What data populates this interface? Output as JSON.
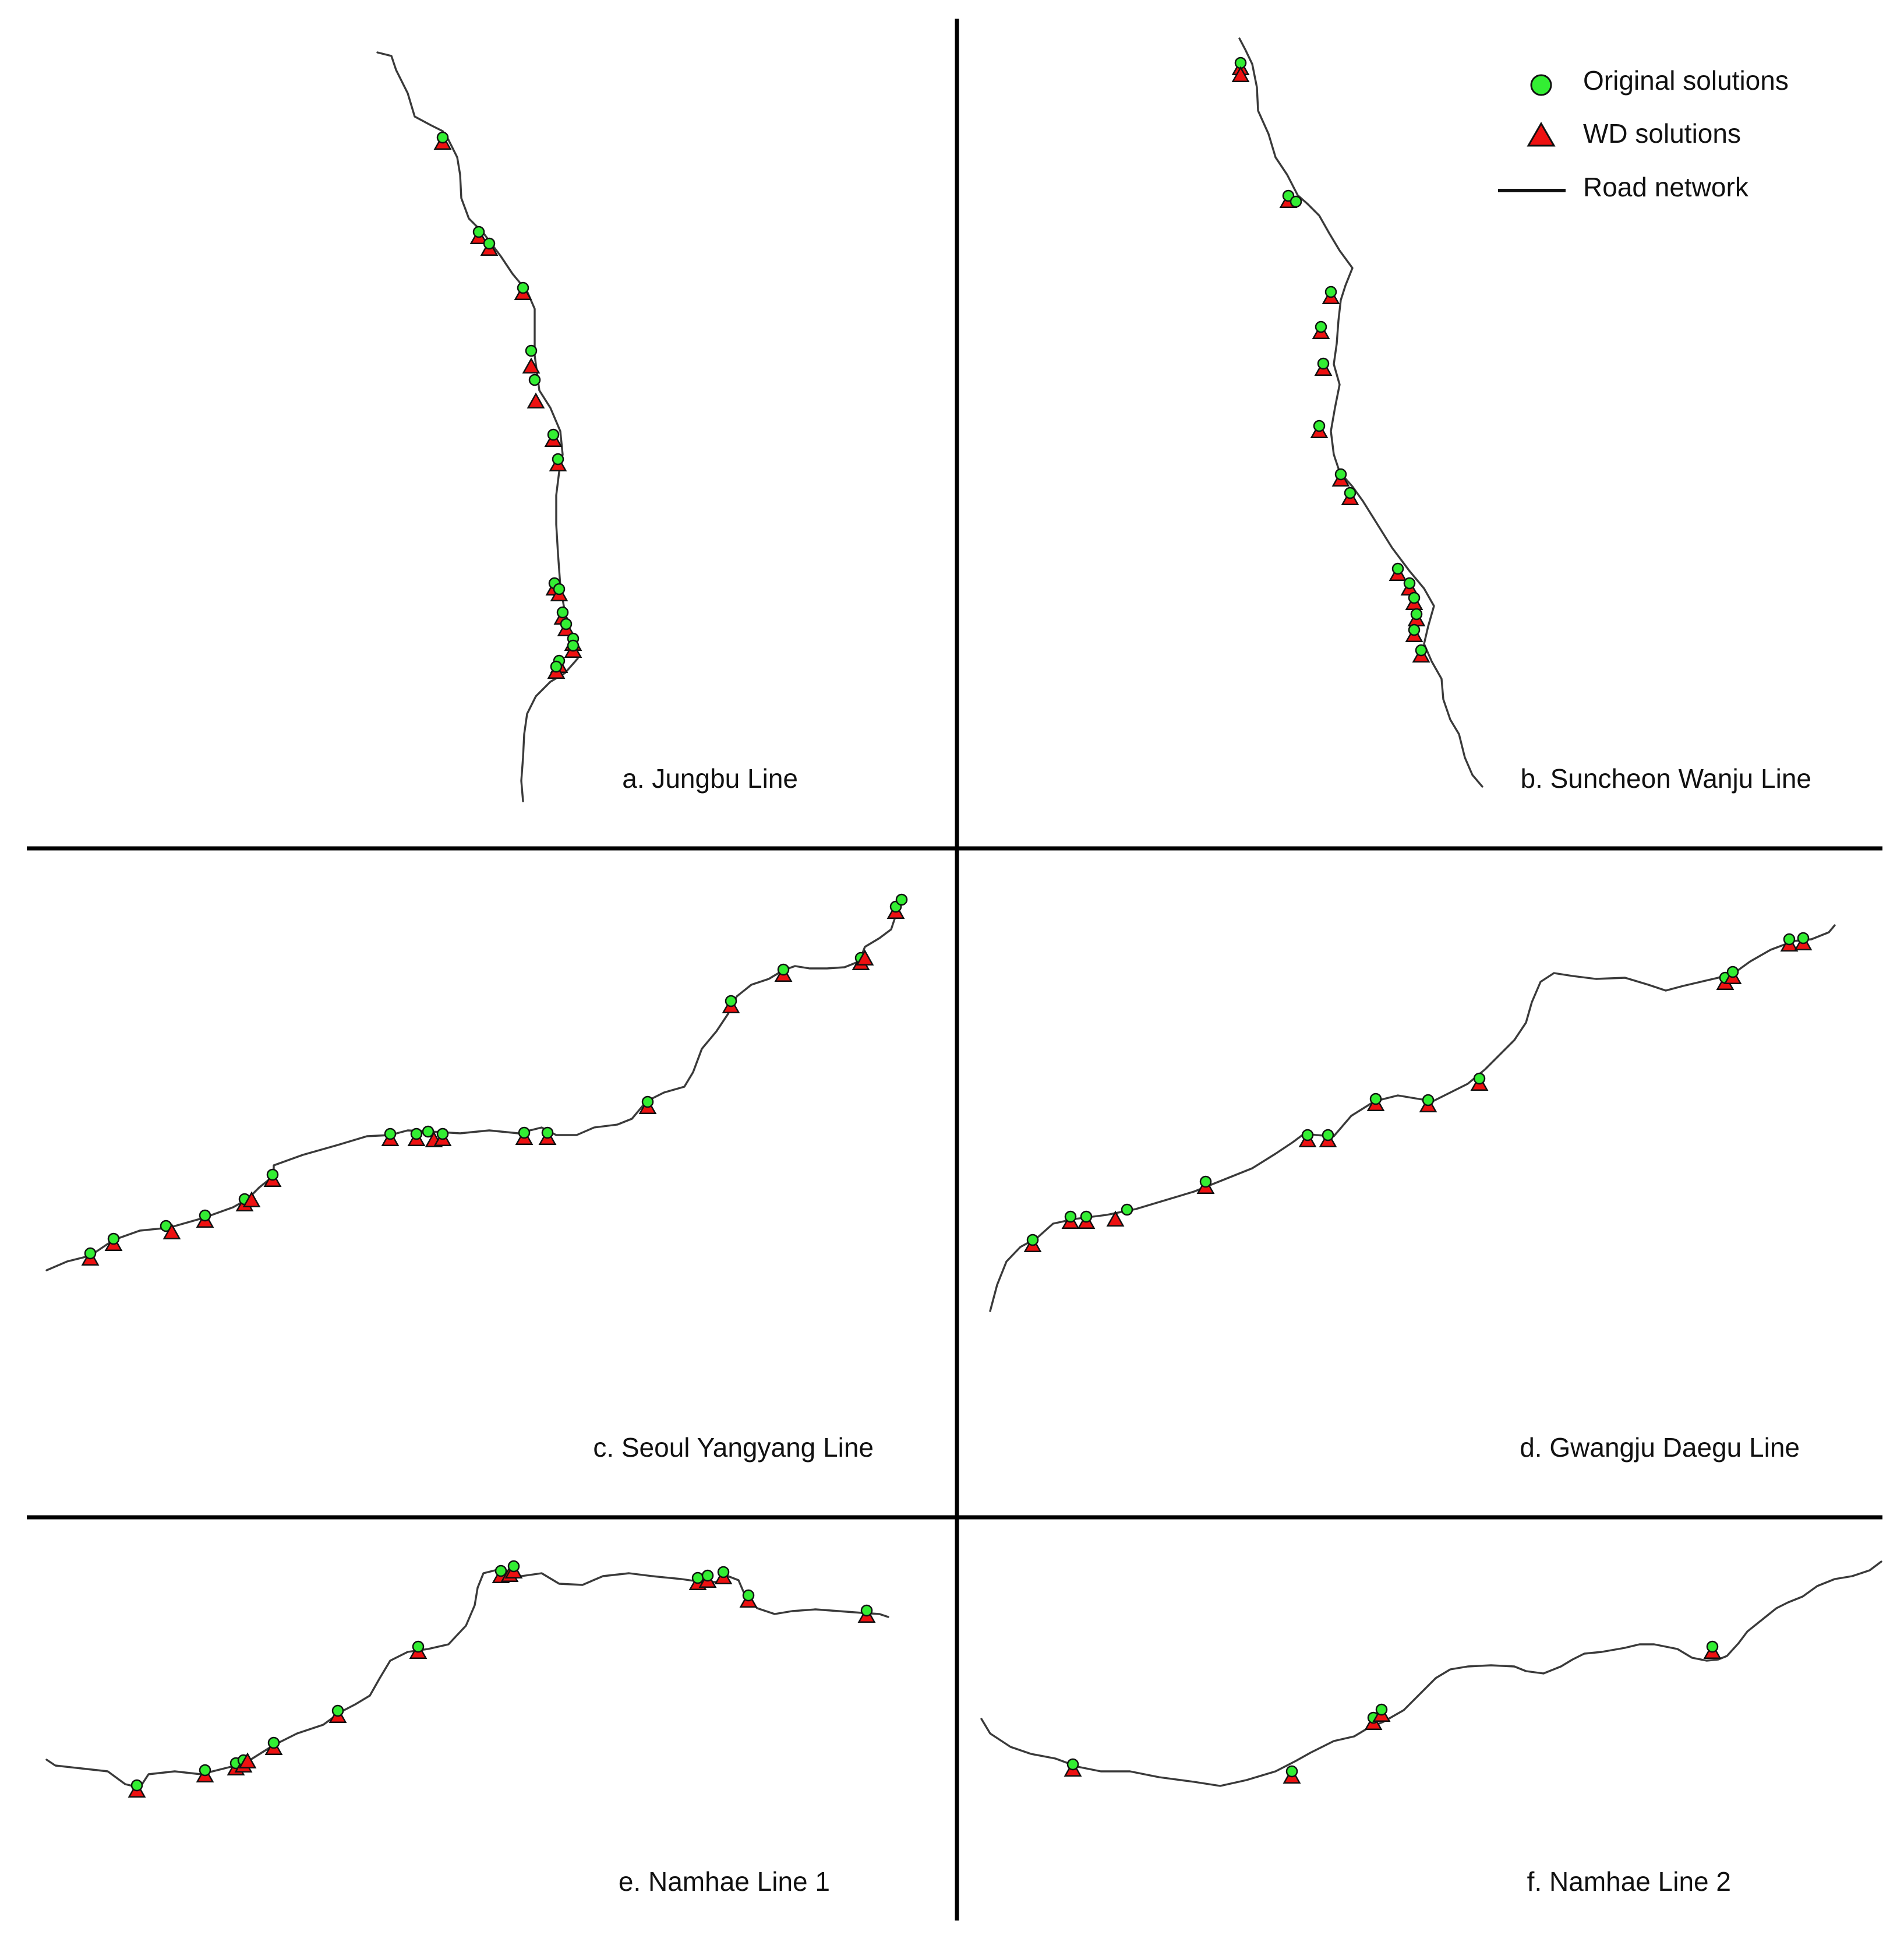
{
  "figure": {
    "colors": {
      "original_fill": "#33ee33",
      "wd_fill": "#ee1111",
      "marker_stroke": "#111111",
      "road": "#3a3a3a",
      "divider": "#000000"
    },
    "legend": {
      "items": [
        {
          "label": "Original solutions",
          "symbol": "green-circle"
        },
        {
          "label": "WD solutions",
          "symbol": "red-triangle"
        },
        {
          "label": "Road network",
          "symbol": "black-line"
        }
      ]
    },
    "panels": [
      {
        "label": "a. Jungbu Line"
      },
      {
        "label": "b. Suncheon Wanju Line"
      },
      {
        "label": "c. Seoul Yangyang Line"
      },
      {
        "label": "d. Gwangju Daegu Line"
      },
      {
        "label": "e. Namhae Line 1"
      },
      {
        "label": "f. Namhae Line 2"
      }
    ]
  }
}
